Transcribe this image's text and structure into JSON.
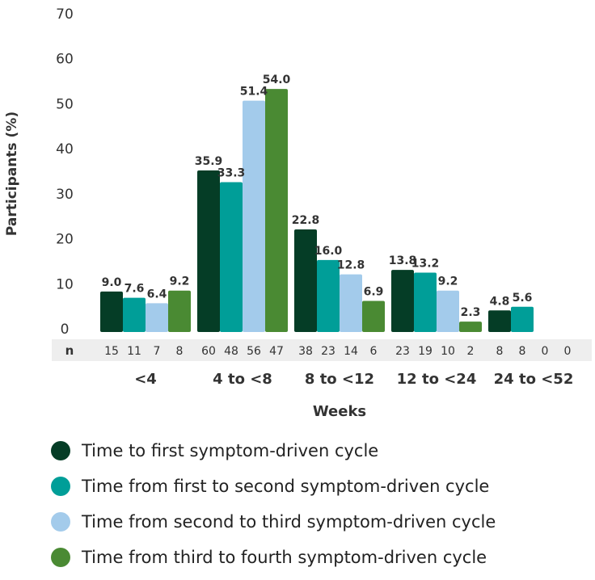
{
  "chart_data": {
    "type": "bar",
    "ylabel": "Participants (%)",
    "xlabel": "Weeks",
    "ylim": [
      0,
      70
    ],
    "yticks": [
      0,
      10,
      20,
      30,
      40,
      50,
      60,
      70
    ],
    "grid": false,
    "legend_position": "bottom",
    "categories": [
      "<4",
      "4 to <8",
      "8 to <12",
      "12 to <24",
      "24 to <52"
    ],
    "n_label": "n",
    "series": [
      {
        "name": "Time to first symptom-driven cycle",
        "color": "#053d26",
        "values": [
          9.0,
          35.9,
          22.8,
          13.8,
          4.8
        ],
        "labels": [
          "9.0",
          "35.9",
          "22.8",
          "13.8",
          "4.8"
        ],
        "n": [
          "15",
          "60",
          "38",
          "23",
          "8"
        ]
      },
      {
        "name": "Time from first to second symptom-driven cycle",
        "color": "#009e98",
        "values": [
          7.6,
          33.3,
          16.0,
          13.2,
          5.6
        ],
        "labels": [
          "7.6",
          "33.3",
          "16.0",
          "13.2",
          "5.6"
        ],
        "n": [
          "11",
          "48",
          "23",
          "19",
          "8"
        ]
      },
      {
        "name": "Time from second to third symptom-driven cycle",
        "color": "#a3cbeb",
        "values": [
          6.4,
          51.4,
          12.8,
          9.2,
          0
        ],
        "labels": [
          "6.4",
          "51.4",
          "12.8",
          "9.2",
          ""
        ],
        "n": [
          "7",
          "56",
          "14",
          "10",
          "0"
        ]
      },
      {
        "name": "Time from third to fourth symptom-driven cycle",
        "color": "#4a8a33",
        "values": [
          9.2,
          54.0,
          6.9,
          2.3,
          0
        ],
        "labels": [
          "9.2",
          "54.0",
          "6.9",
          "2.3",
          ""
        ],
        "n": [
          "8",
          "47",
          "6",
          "2",
          "0"
        ]
      }
    ]
  }
}
